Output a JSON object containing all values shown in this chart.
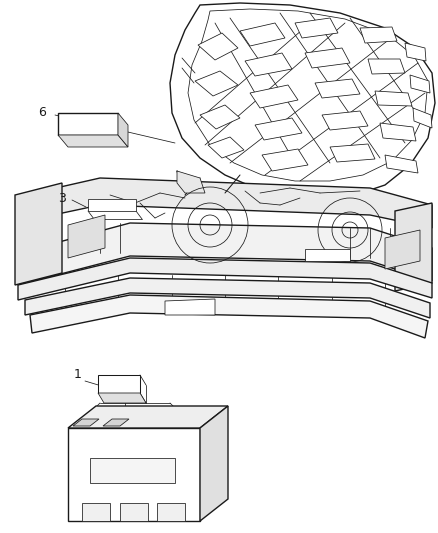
{
  "background_color": "#ffffff",
  "line_color": "#1a1a1a",
  "fig_width": 4.38,
  "fig_height": 5.33,
  "dpi": 100,
  "lw_main": 1.0,
  "lw_thin": 0.55,
  "lw_med": 0.75
}
